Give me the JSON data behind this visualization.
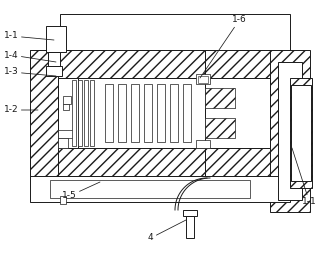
{
  "bg_color": "#ffffff",
  "line_color": "#1a1a1a",
  "labels": {
    "1-1_top": "1-1",
    "1-4": "1-4",
    "1-3": "1-3",
    "1-2": "1-2",
    "1-5": "1-5",
    "1-6": "1-6",
    "1-1_right": "1-1",
    "4": "4"
  },
  "figsize": [
    3.28,
    2.56
  ],
  "dpi": 100
}
